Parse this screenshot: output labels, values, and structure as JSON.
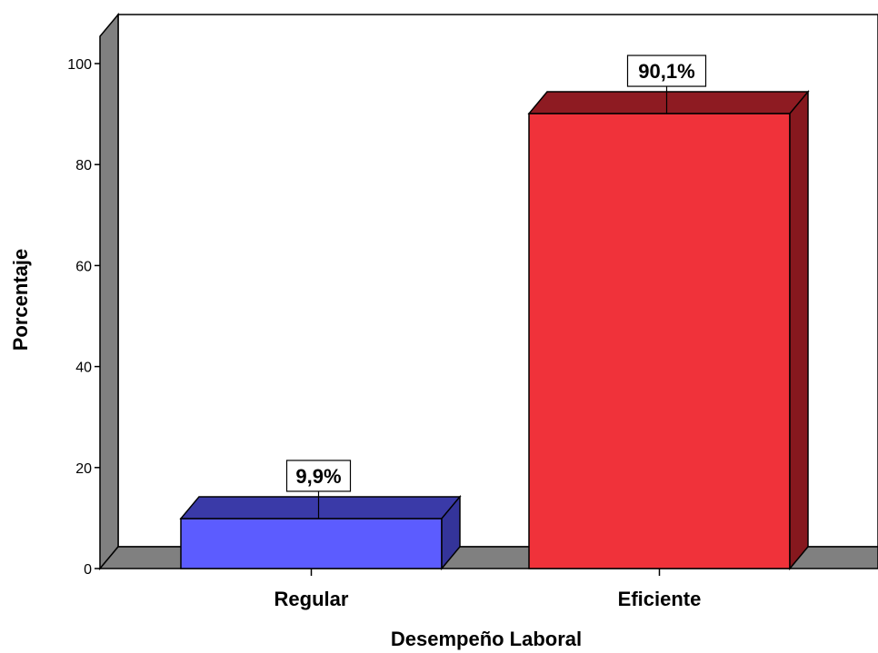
{
  "chart_data": {
    "type": "bar",
    "categories": [
      "Regular",
      "Eficiente"
    ],
    "values": [
      9.9,
      90.1
    ],
    "data_labels": [
      "9,9%",
      "90,1%"
    ],
    "xlabel": "Desempeño Laboral",
    "ylabel": "Porcentaje",
    "ylim": [
      0,
      100
    ],
    "yticks": [
      0,
      20,
      40,
      60,
      80,
      100
    ],
    "grid": false,
    "style": "3d",
    "colors": {
      "bar_fronts": [
        "#5c5cff",
        "#f0323a"
      ],
      "bar_tops": [
        "#3a3aa8",
        "#8e1b22"
      ],
      "bar_sides": [
        "#34349a",
        "#86181e"
      ],
      "wall": "#808080",
      "background": "#ffffff"
    }
  }
}
